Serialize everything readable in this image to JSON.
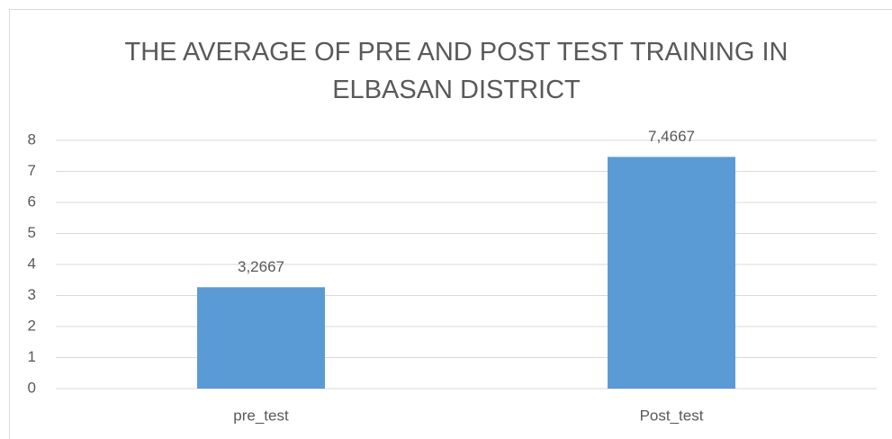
{
  "chart_data": {
    "type": "bar",
    "title": "THE AVERAGE OF PRE AND POST TEST TRAINING IN ELBASAN DISTRICT",
    "categories": [
      "pre_test",
      "Post_test"
    ],
    "values": [
      3.2667,
      7.4667
    ],
    "value_labels": [
      "3,2667",
      "7,4667"
    ],
    "color": "#5b9bd5",
    "ylim": [
      0,
      8
    ],
    "yticks": [
      0,
      1,
      2,
      3,
      4,
      5,
      6,
      7,
      8
    ],
    "grid": true
  }
}
